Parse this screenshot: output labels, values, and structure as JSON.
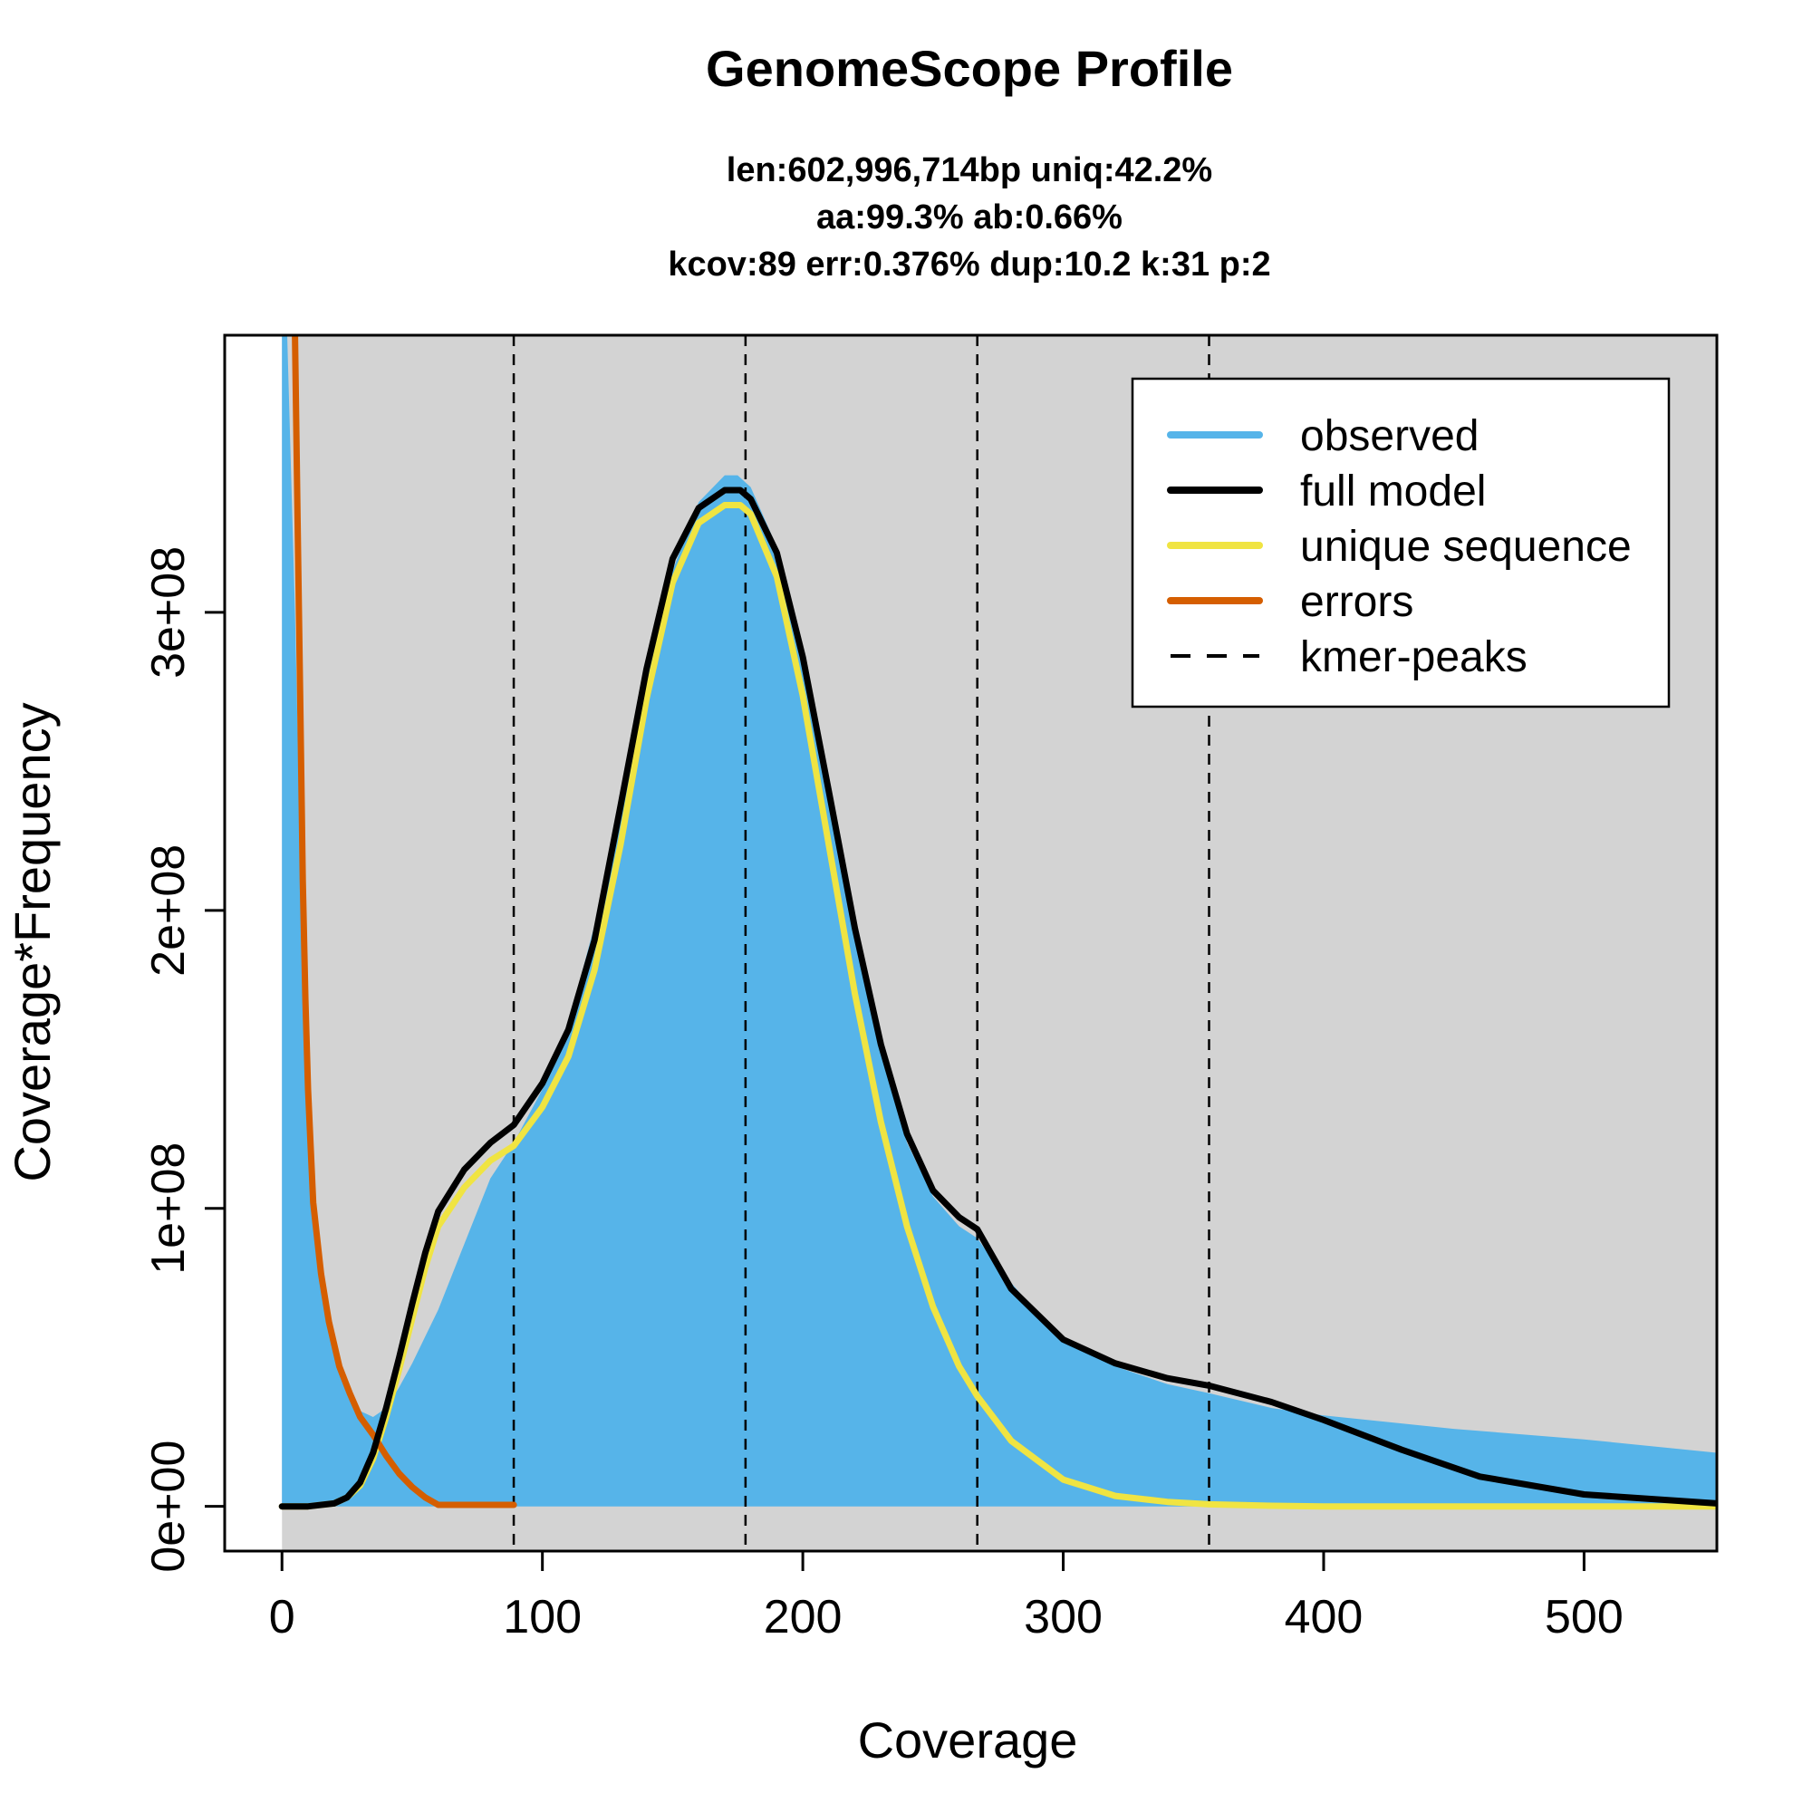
{
  "chart_data": {
    "type": "area",
    "title": "GenomeScope Profile",
    "subtitle_lines": [
      "len:602,996,714bp uniq:42.2%",
      "aa:99.3% ab:0.66%",
      "kcov:89 err:0.376%  dup:10.2  k:31 p:2"
    ],
    "xlabel": "Coverage",
    "ylabel": "Coverage*Frequency",
    "xlim": [
      -22,
      551
    ],
    "ylim": [
      -15000000,
      393000000
    ],
    "x_ticks": [
      0,
      100,
      200,
      300,
      400,
      500
    ],
    "x_tick_labels": [
      "0",
      "100",
      "200",
      "300",
      "400",
      "500"
    ],
    "y_ticks": [
      0,
      100000000,
      200000000,
      300000000
    ],
    "y_tick_labels": [
      "0e+00",
      "1e+08",
      "2e+08",
      "3e+08"
    ],
    "kmer_peaks": [
      89,
      178,
      267,
      356
    ],
    "colors": {
      "background": "#d3d3d3",
      "observed": "#56b4e9",
      "full_model": "#000000",
      "unique_sequence": "#f0e442",
      "errors": "#d55e00"
    },
    "legend": {
      "position": "top-right",
      "entries": [
        {
          "label": "observed",
          "style": "observed"
        },
        {
          "label": "full model",
          "style": "full_model"
        },
        {
          "label": "unique sequence",
          "style": "unique_sequence"
        },
        {
          "label": "errors",
          "style": "errors"
        },
        {
          "label": "kmer-peaks",
          "style": "kmer_peaks"
        }
      ]
    },
    "series": [
      {
        "id": "observed",
        "x": [
          0,
          2,
          5,
          8,
          12,
          18,
          25,
          30,
          35,
          40,
          45,
          50,
          55,
          60,
          70,
          80,
          89,
          100,
          110,
          120,
          130,
          140,
          150,
          160,
          170,
          175,
          180,
          190,
          200,
          210,
          220,
          230,
          240,
          250,
          260,
          267,
          275,
          285,
          300,
          320,
          340,
          356,
          380,
          400,
          450,
          500,
          551
        ],
        "y": [
          393000000,
          393000000,
          300000000,
          180000000,
          100000000,
          60000000,
          38000000,
          32000000,
          30000000,
          33000000,
          40000000,
          48000000,
          57000000,
          66000000,
          88000000,
          110000000,
          122000000,
          140000000,
          162000000,
          195000000,
          235000000,
          278000000,
          314000000,
          337000000,
          346000000,
          346000000,
          342000000,
          322000000,
          286000000,
          242000000,
          196000000,
          154000000,
          122000000,
          104000000,
          94000000,
          90000000,
          80000000,
          70000000,
          57000000,
          47000000,
          41000000,
          38000000,
          33000000,
          30500000,
          26000000,
          22500000,
          18000000
        ]
      },
      {
        "id": "full_model",
        "x": [
          0,
          10,
          20,
          25,
          30,
          35,
          40,
          45,
          50,
          55,
          60,
          70,
          80,
          89,
          100,
          110,
          120,
          130,
          140,
          150,
          160,
          170,
          176,
          180,
          190,
          200,
          210,
          220,
          230,
          240,
          250,
          260,
          267,
          280,
          300,
          320,
          340,
          356,
          380,
          400,
          430,
          460,
          500,
          551
        ],
        "y": [
          0,
          0,
          1000000,
          3000000,
          8000000,
          18000000,
          33000000,
          50000000,
          68000000,
          85000000,
          99000000,
          113000000,
          122000000,
          128000000,
          142000000,
          160000000,
          190000000,
          235000000,
          281000000,
          318000000,
          335000000,
          341000000,
          341000000,
          338000000,
          320000000,
          285000000,
          240000000,
          194000000,
          155000000,
          125000000,
          106000000,
          97000000,
          93000000,
          73000000,
          56000000,
          48000000,
          43000000,
          40500000,
          35000000,
          29000000,
          19000000,
          10000000,
          4000000,
          1000000
        ]
      },
      {
        "id": "unique_sequence",
        "x": [
          0,
          10,
          20,
          25,
          30,
          35,
          40,
          45,
          50,
          55,
          60,
          70,
          80,
          89,
          100,
          110,
          120,
          130,
          140,
          150,
          160,
          170,
          176,
          180,
          190,
          200,
          210,
          220,
          230,
          240,
          250,
          260,
          267,
          280,
          300,
          320,
          340,
          356,
          380,
          400,
          450,
          551
        ],
        "y": [
          0,
          0,
          1000000,
          3000000,
          7000000,
          16000000,
          30000000,
          46000000,
          63000000,
          80000000,
          94000000,
          107000000,
          116000000,
          121000000,
          134000000,
          151000000,
          180000000,
          222000000,
          271000000,
          310000000,
          330000000,
          336000000,
          336000000,
          333000000,
          312000000,
          272000000,
          222000000,
          172000000,
          129000000,
          94000000,
          67000000,
          47000000,
          37000000,
          22000000,
          9000000,
          3500000,
          1500000,
          700000,
          200000,
          0,
          0,
          0
        ]
      },
      {
        "id": "errors",
        "x": [
          5,
          6,
          7,
          8,
          9,
          10,
          12,
          15,
          18,
          22,
          26,
          30,
          35,
          40,
          45,
          50,
          55,
          60,
          70,
          80,
          89
        ],
        "y": [
          393000000,
          330000000,
          270000000,
          210000000,
          170000000,
          140000000,
          102000000,
          78000000,
          62000000,
          47000000,
          38000000,
          30000000,
          24000000,
          17000000,
          11000000,
          6500000,
          3000000,
          500000,
          500000,
          500000,
          500000
        ]
      }
    ]
  }
}
